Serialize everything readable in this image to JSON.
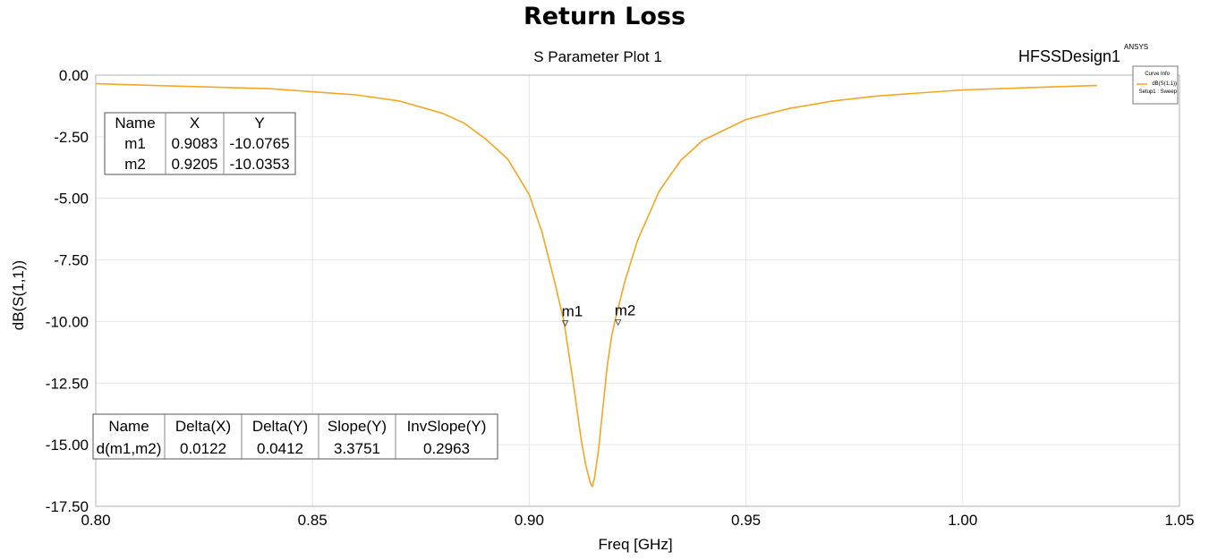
{
  "page": {
    "title": "Return Loss"
  },
  "chart_data": {
    "type": "line",
    "title": "S Parameter Plot 1",
    "design_label": "HFSSDesign1",
    "brand": "ANSYS",
    "xlabel": "Freq [GHz]",
    "ylabel": "dB(S(1,1))",
    "xlim": [
      0.8,
      1.05
    ],
    "ylim": [
      -17.5,
      0.0
    ],
    "x_ticks": [
      "0.80",
      "0.85",
      "0.90",
      "0.95",
      "1.00",
      "1.05"
    ],
    "x_tick_values": [
      0.8,
      0.85,
      0.9,
      0.95,
      1.0,
      1.05
    ],
    "y_ticks": [
      "0.00",
      "-2.50",
      "-5.00",
      "-7.50",
      "-10.00",
      "-12.50",
      "-15.00",
      "-17.50"
    ],
    "y_tick_values": [
      0.0,
      -2.5,
      -5.0,
      -7.5,
      -10.0,
      -12.5,
      -15.0,
      -17.5
    ],
    "grid": true,
    "legend": {
      "title": "Curve Info",
      "entries": [
        "dB(S(1,1))",
        "Setup1 : Sweep"
      ],
      "placement": "top-right",
      "color": "#f5a623"
    },
    "series": [
      {
        "name": "dB(S(1,1))",
        "color": "#f5a623",
        "x": [
          0.8,
          0.82,
          0.84,
          0.86,
          0.87,
          0.88,
          0.885,
          0.89,
          0.895,
          0.9,
          0.903,
          0.906,
          0.908,
          0.91,
          0.912,
          0.913,
          0.914,
          0.9145,
          0.915,
          0.916,
          0.917,
          0.918,
          0.919,
          0.92,
          0.922,
          0.925,
          0.93,
          0.935,
          0.94,
          0.95,
          0.96,
          0.97,
          0.98,
          1.0,
          1.02,
          1.031
        ],
        "y": [
          -0.35,
          -0.45,
          -0.55,
          -0.8,
          -1.05,
          -1.55,
          -1.95,
          -2.6,
          -3.4,
          -4.85,
          -6.4,
          -8.5,
          -10.0,
          -12.3,
          -14.8,
          -15.8,
          -16.5,
          -16.7,
          -16.4,
          -15.2,
          -13.5,
          -11.8,
          -10.6,
          -9.8,
          -8.4,
          -6.7,
          -4.7,
          -3.45,
          -2.65,
          -1.8,
          -1.35,
          -1.05,
          -0.85,
          -0.6,
          -0.48,
          -0.42
        ]
      }
    ],
    "markers": [
      {
        "name": "m1",
        "x": 0.9083,
        "y": -10.0765
      },
      {
        "name": "m2",
        "x": 0.9205,
        "y": -10.0353
      }
    ],
    "marker_table": {
      "headers": [
        "Name",
        "X",
        "Y"
      ],
      "rows": [
        [
          "m1",
          "0.9083",
          "-10.0765"
        ],
        [
          "m2",
          "0.9205",
          "-10.0353"
        ]
      ]
    },
    "delta_table": {
      "headers": [
        "Name",
        "Delta(X)",
        "Delta(Y)",
        "Slope(Y)",
        "InvSlope(Y)"
      ],
      "rows": [
        [
          "d(m1,m2)",
          "0.0122",
          "0.0412",
          "3.3751",
          "0.2963"
        ]
      ]
    }
  }
}
